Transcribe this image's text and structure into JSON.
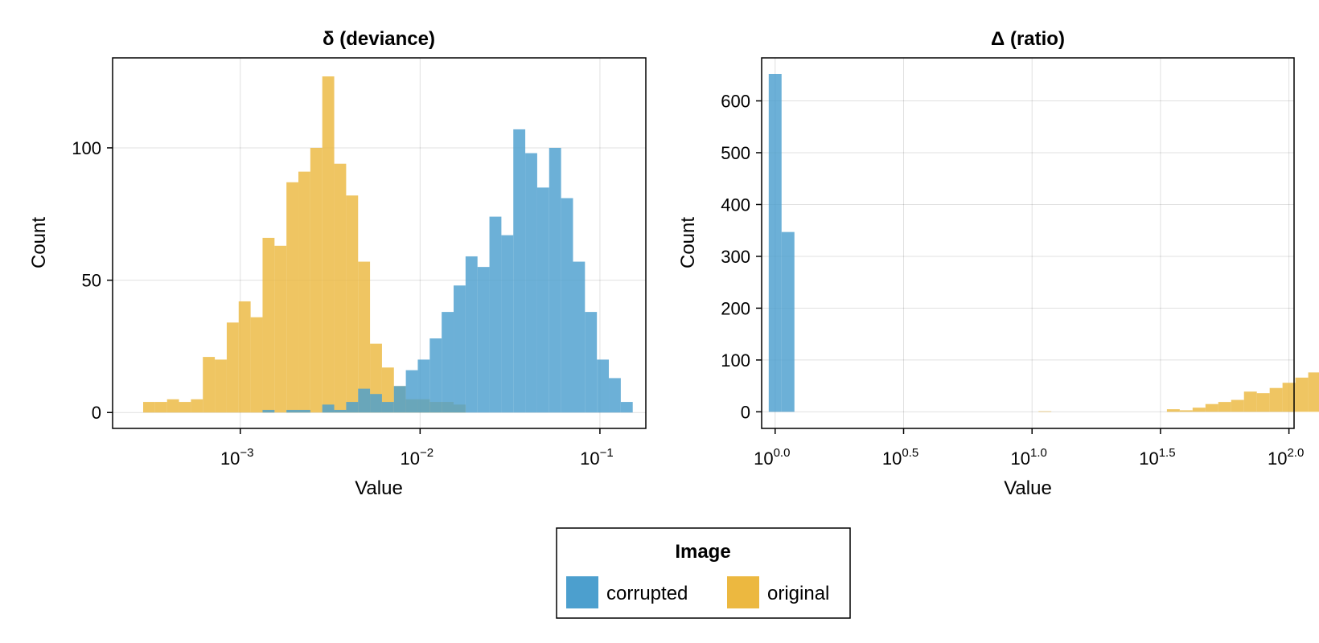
{
  "legend": {
    "title": "Image",
    "placement": "bottom-center",
    "entries": [
      {
        "label": "corrupted",
        "color": "#4c9fce"
      },
      {
        "label": "original",
        "color": "#ecb840"
      }
    ]
  },
  "chart_data": [
    {
      "type": "histogram",
      "title": "δ  (deviance)",
      "xlabel": "Value",
      "ylabel": "Count",
      "xscale": "log10",
      "xlim": [
        0.000195,
        0.18
      ],
      "ylim": [
        -6,
        134
      ],
      "xticks": [
        {
          "value": 0.001,
          "base": "10",
          "exp": "−3"
        },
        {
          "value": 0.01,
          "base": "10",
          "exp": "−2"
        },
        {
          "value": 0.1,
          "base": "10",
          "exp": "−1"
        }
      ],
      "yticks": [
        0,
        50,
        100
      ],
      "grid": true,
      "series": [
        {
          "name": "original",
          "color": "#ecb840",
          "bins_log10": {
            "start": -3.54,
            "width": 0.0664
          },
          "counts": [
            4,
            4,
            5,
            4,
            5,
            21,
            20,
            34,
            42,
            36,
            66,
            63,
            87,
            91,
            100,
            127,
            94,
            82,
            57,
            26,
            17,
            10,
            5,
            5,
            4,
            4,
            3
          ]
        },
        {
          "name": "corrupted",
          "color": "#4c9fce",
          "bins_log10": {
            "start": -3.54,
            "width": 0.0664
          },
          "counts": [
            0,
            0,
            0,
            0,
            0,
            0,
            0,
            0,
            0,
            0,
            1,
            0,
            1,
            1,
            0,
            3,
            1,
            4,
            9,
            7,
            4,
            10,
            16,
            20,
            28,
            38,
            48,
            59,
            55,
            74,
            67,
            107,
            98,
            85,
            100,
            81,
            57,
            38,
            20,
            13,
            4
          ]
        }
      ]
    },
    {
      "type": "histogram",
      "title": "Δ  (ratio)",
      "xlabel": "Value",
      "ylabel": "Count",
      "xscale": "log10",
      "xlim": [
        0.886,
        104.7
      ],
      "ylim": [
        -32,
        683
      ],
      "xticks": [
        {
          "value": 1,
          "base": "10",
          "exp": "0.0"
        },
        {
          "value": 3.1623,
          "base": "10",
          "exp": "0.5"
        },
        {
          "value": 10,
          "base": "10",
          "exp": "1.0"
        },
        {
          "value": 31.623,
          "base": "10",
          "exp": "1.5"
        },
        {
          "value": 100,
          "base": "10",
          "exp": "2.0"
        }
      ],
      "yticks": [
        0,
        100,
        200,
        300,
        400,
        500,
        600
      ],
      "grid": true,
      "series": [
        {
          "name": "corrupted",
          "color": "#4c9fce",
          "bins_log10": {
            "start": -0.025,
            "width": 0.05
          },
          "counts": [
            652,
            347
          ]
        },
        {
          "name": "original",
          "color": "#ecb840",
          "bins_log10": {
            "start": -0.025,
            "width": 0.05
          },
          "counts": [
            0,
            0,
            0,
            0,
            0,
            0,
            0,
            0,
            0,
            0,
            0,
            0,
            0,
            0,
            0,
            0,
            0,
            0,
            0,
            0,
            0,
            0,
            0,
            1,
            0,
            0,
            0,
            0,
            0,
            0,
            0,
            0,
            0,
            0,
            0,
            0,
            0,
            0,
            0,
            0,
            0,
            0,
            0,
            0,
            0,
            0,
            0,
            0,
            0,
            0,
            0,
            0,
            0,
            0,
            0,
            0,
            0,
            0,
            0,
            0,
            0,
            0,
            0,
            0,
            0,
            0,
            0,
            0,
            0,
            0,
            0,
            0,
            0,
            0,
            0,
            0,
            0,
            0,
            0,
            0,
            0
          ]
        }
      ]
    }
  ]
}
